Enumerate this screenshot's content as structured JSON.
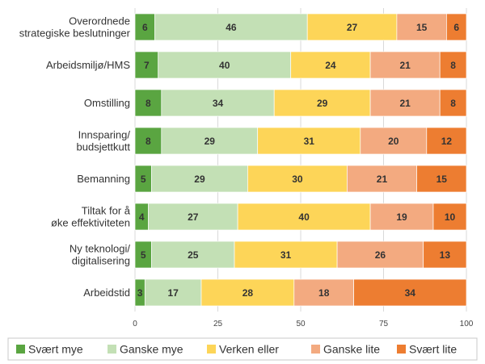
{
  "chart_data": {
    "type": "bar",
    "orientation": "horizontal",
    "stacked": true,
    "title": "",
    "xlabel": "",
    "ylabel": "",
    "xlim": [
      0,
      100
    ],
    "xticks": [
      0,
      25,
      50,
      75,
      100
    ],
    "grid": true,
    "legend_position": "bottom",
    "categories": [
      [
        "Overordnede",
        "strategiske beslutninger"
      ],
      [
        "Arbeidsmiljø/HMS"
      ],
      [
        "Omstilling"
      ],
      [
        "Innsparing/",
        "budsjettkutt"
      ],
      [
        "Bemanning"
      ],
      [
        "Tiltak for å",
        "øke effektiviteten"
      ],
      [
        "Ny teknologi/",
        "digitalisering"
      ],
      [
        "Arbeidstid"
      ]
    ],
    "series": [
      {
        "name": "Svært mye",
        "color": "#5aa541",
        "label_color": "#ffffff",
        "values": [
          6,
          7,
          8,
          8,
          5,
          4,
          5,
          3
        ]
      },
      {
        "name": "Ganske mye",
        "color": "#c3e0b5",
        "label_color": "#333333",
        "values": [
          46,
          40,
          34,
          29,
          29,
          27,
          25,
          17
        ]
      },
      {
        "name": "Verken eller",
        "color": "#fdd558",
        "label_color": "#333333",
        "values": [
          27,
          24,
          29,
          31,
          30,
          40,
          31,
          28
        ]
      },
      {
        "name": "Ganske lite",
        "color": "#f3aa80",
        "label_color": "#333333",
        "values": [
          15,
          21,
          21,
          20,
          21,
          19,
          26,
          18
        ]
      },
      {
        "name": "Svært lite",
        "color": "#ed7d31",
        "label_color": "#ffffff",
        "values": [
          6,
          8,
          8,
          12,
          15,
          10,
          13,
          34
        ]
      }
    ]
  }
}
